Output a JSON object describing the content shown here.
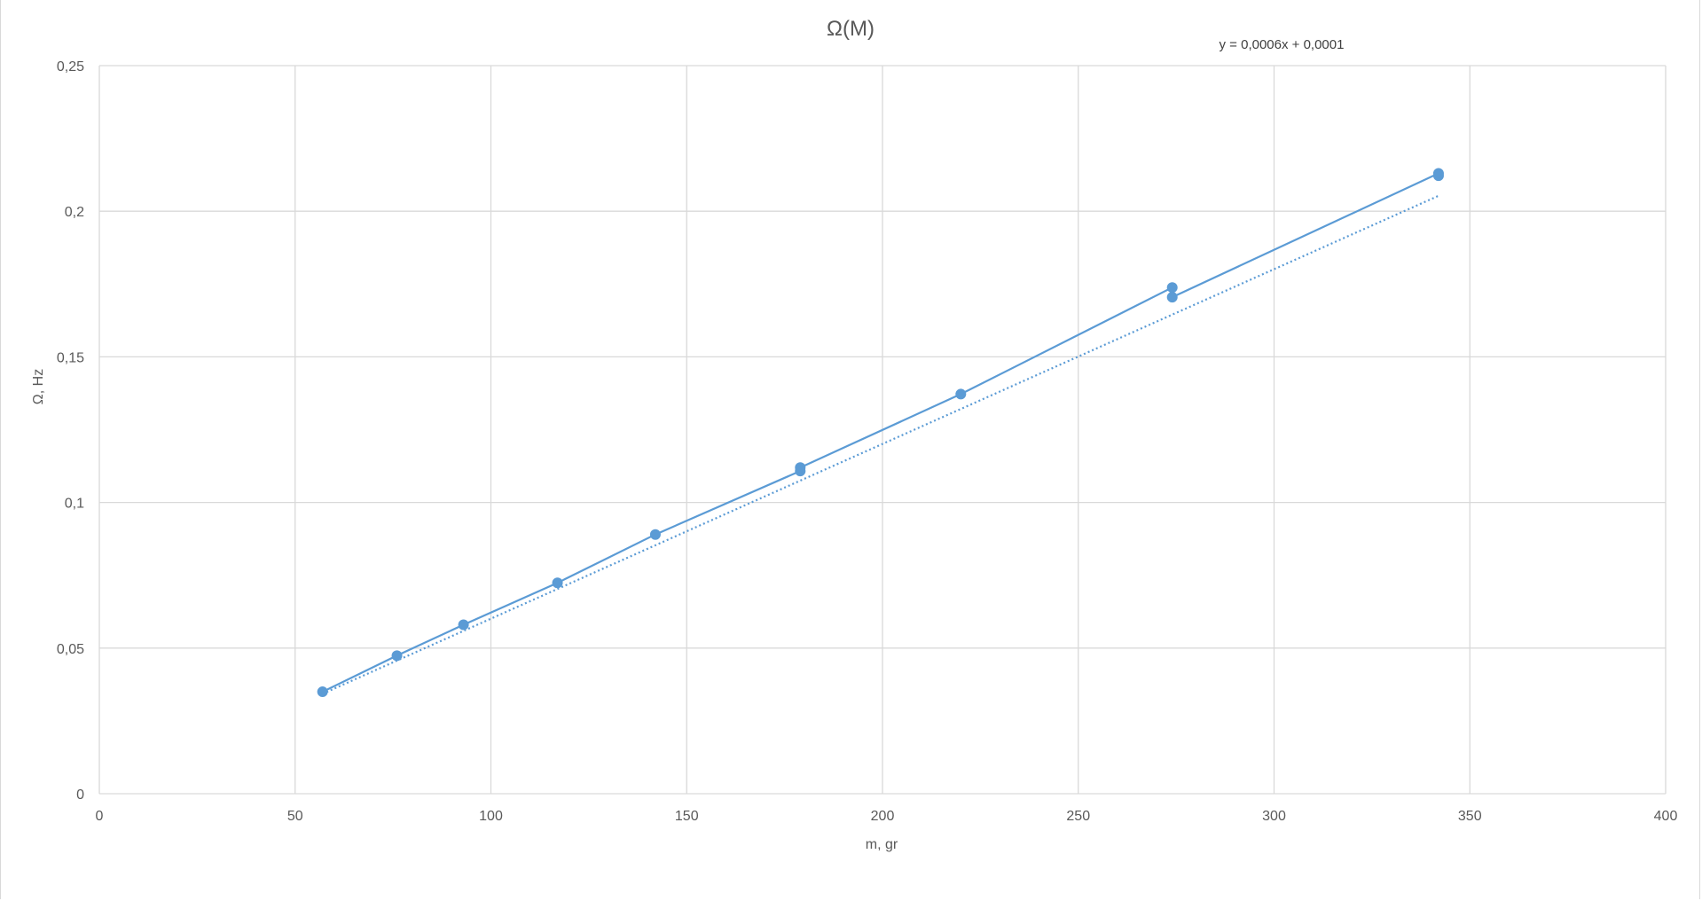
{
  "chart_data": {
    "type": "scatter",
    "title": "Ω(M)",
    "xlabel": "m, gr",
    "ylabel": "Ω, Hz",
    "xlim": [
      0,
      400
    ],
    "ylim": [
      0,
      0.25
    ],
    "x_ticks": [
      0,
      50,
      100,
      150,
      200,
      250,
      300,
      350,
      400
    ],
    "x_tick_labels": [
      "0",
      "50",
      "100",
      "150",
      "200",
      "250",
      "300",
      "350",
      "400"
    ],
    "y_ticks": [
      0,
      0.05,
      0.1,
      0.15,
      0.2,
      0.25
    ],
    "y_tick_labels": [
      "0",
      "0,05",
      "0,1",
      "0,15",
      "0,2",
      "0,25"
    ],
    "grid": true,
    "legend": "none",
    "series": [
      {
        "x": [
          57,
          76,
          93,
          117,
          142,
          179,
          179,
          220,
          274,
          274,
          342,
          342
        ],
        "y": [
          0.035,
          0.0474,
          0.058,
          0.0724,
          0.089,
          0.1108,
          0.112,
          0.1372,
          0.1738,
          0.1705,
          0.213,
          0.2122
        ],
        "color": "#5b9bd5",
        "marker": "circle",
        "line": "solid"
      }
    ],
    "trendline": {
      "type": "linear",
      "slope": 0.0006,
      "intercept": 0.0001,
      "equation_label": "y = 0,0006x + 0,0001",
      "style": "dotted",
      "color": "#5b9bd5"
    },
    "colors": {
      "series": "#5b9bd5",
      "grid": "#d9d9d9",
      "text": "#595959"
    }
  }
}
